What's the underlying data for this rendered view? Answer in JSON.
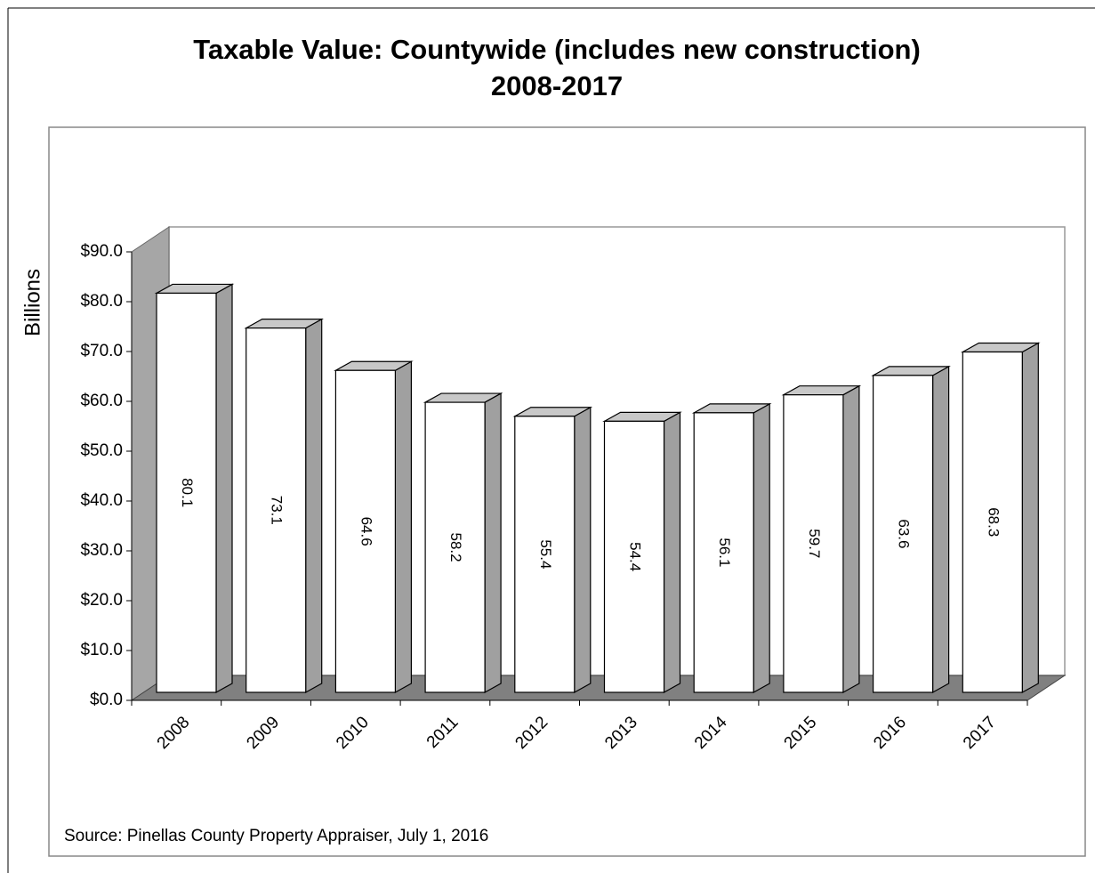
{
  "chart_data": {
    "type": "bar3d",
    "title": "Taxable Value: Countywide (includes new construction)",
    "subtitle": "2008-2017",
    "y_label": "Billions",
    "note": "Source:  Pinellas County Property Appraiser, July 1, 2016",
    "categories": [
      "2008",
      "2009",
      "2010",
      "2011",
      "2012",
      "2013",
      "2014",
      "2015",
      "2016",
      "2017"
    ],
    "values": [
      80.1,
      73.1,
      64.6,
      58.2,
      55.4,
      54.4,
      56.1,
      59.7,
      63.6,
      68.3
    ],
    "color": "#ffffff",
    "ylim": [
      0,
      90
    ],
    "yticks": [
      {
        "value": 0,
        "label": "$0.0"
      },
      {
        "value": 10,
        "label": "$10.0"
      },
      {
        "value": 20,
        "label": "$20.0"
      },
      {
        "value": 30,
        "label": "$30.0"
      },
      {
        "value": 40,
        "label": "$40.0"
      },
      {
        "value": 50,
        "label": "$50.0"
      },
      {
        "value": 60,
        "label": "$60.0"
      },
      {
        "value": 70,
        "label": "$70.0"
      },
      {
        "value": 80,
        "label": "$80.0"
      },
      {
        "value": 90,
        "label": "$90.0"
      }
    ],
    "grid": false
  }
}
